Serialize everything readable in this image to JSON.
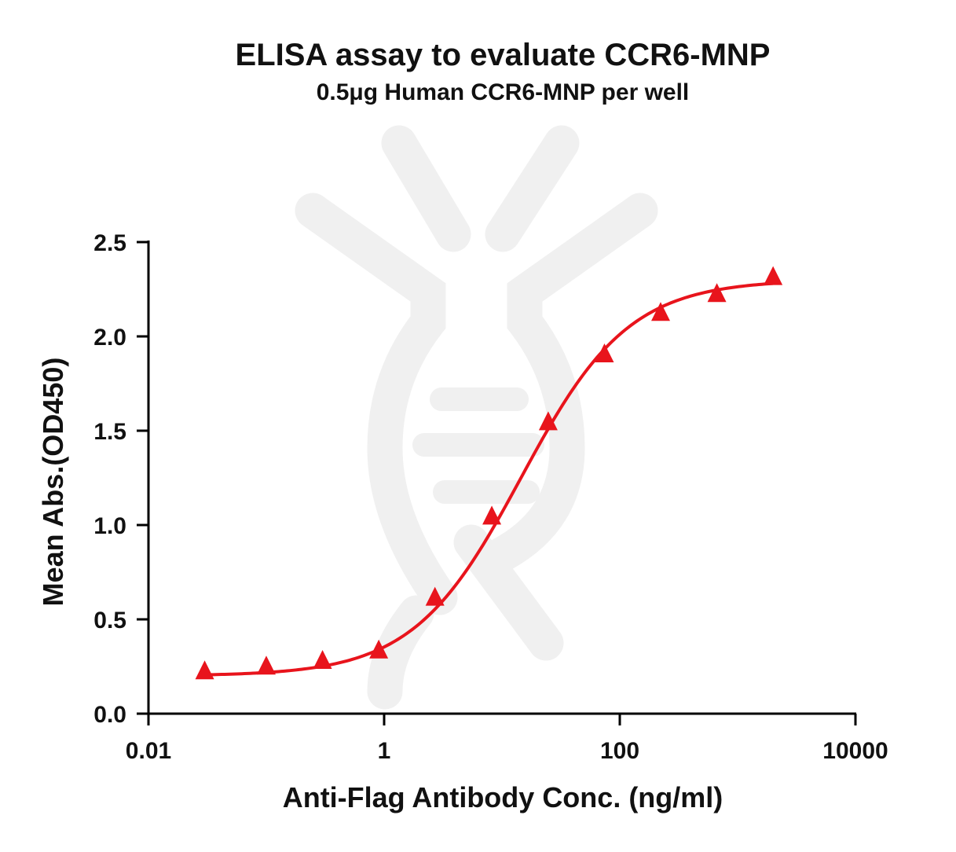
{
  "chart_data": {
    "type": "scatter",
    "title": "ELISA assay to evaluate CCR6-MNP",
    "subtitle": "0.5μg Human CCR6-MNP per well",
    "xlabel": "Anti-Flag Antibody Conc. (ng/ml)",
    "ylabel": "Mean Abs.(OD450)",
    "xscale": "log",
    "xlim": [
      0.01,
      10000
    ],
    "ylim": [
      0,
      2.5
    ],
    "xticks": [
      {
        "value": 0.01,
        "label": "0.01"
      },
      {
        "value": 1,
        "label": "1"
      },
      {
        "value": 100,
        "label": "100"
      },
      {
        "value": 10000,
        "label": "10000"
      }
    ],
    "yticks": [
      {
        "value": 0,
        "label": "0.0"
      },
      {
        "value": 0.5,
        "label": "0.5"
      },
      {
        "value": 1,
        "label": "1.0"
      },
      {
        "value": 1.5,
        "label": "1.5"
      },
      {
        "value": 2,
        "label": "2.0"
      },
      {
        "value": 2.5,
        "label": "2.5"
      }
    ],
    "grid": false,
    "legend": "none",
    "series": [
      {
        "marker": "triangle",
        "color": "#e8141c",
        "x": [
          0.03,
          0.1,
          0.3,
          0.9,
          2.7,
          8.2,
          24.7,
          74.1,
          222.2,
          666.7,
          2000
        ],
        "y": [
          0.22,
          0.245,
          0.275,
          0.33,
          0.61,
          1.04,
          1.54,
          1.9,
          2.12,
          2.22,
          2.31
        ]
      }
    ],
    "fit_curve": {
      "model": "4PL",
      "color": "#e8141c",
      "bottom": 0.2,
      "top": 2.3,
      "ec50": 14.5,
      "hill": 0.95
    }
  }
}
